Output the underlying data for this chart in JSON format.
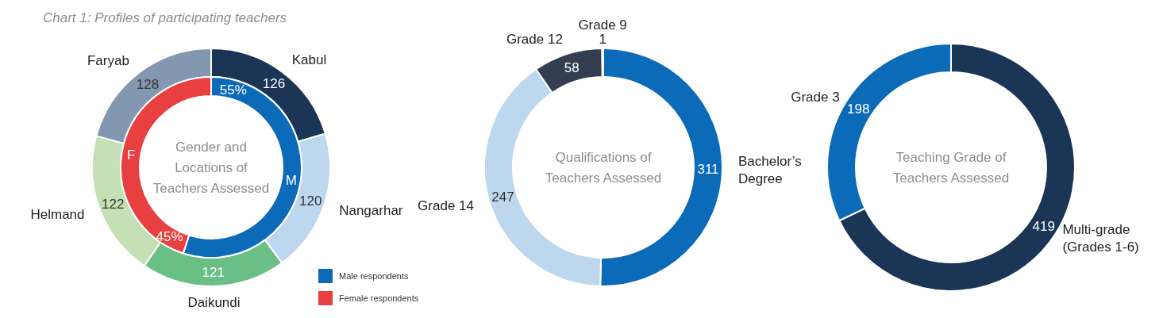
{
  "chart_data": [
    {
      "type": "donut",
      "title": "Chart 1: Profiles of participating teachers",
      "categories": [
        "Kabul",
        "Nangarhar",
        "Daikundi",
        "Helmand",
        "Faryab"
      ],
      "values": [
        126,
        120,
        121,
        122,
        128
      ],
      "colors": [
        "#1b3556",
        "#bdd7ee",
        "#6abf86",
        "#c5e0b4",
        "#8497b0"
      ],
      "data_labels": true,
      "legend": false
    },
    {
      "type": "donut",
      "categories": [
        "Male respondents",
        "Female respondents"
      ],
      "values": [
        55,
        45
      ],
      "value_labels": [
        "55%",
        "45%"
      ],
      "colors": [
        "#0b6bb8",
        "#e84040"
      ],
      "legend": "bottom right",
      "annotations": [
        "Gender and Locations of Teachers Assessed",
        "M",
        "F"
      ]
    },
    {
      "type": "donut",
      "categories": [
        "Bachelor’s Degree",
        "Grade 14",
        "Grade 12",
        "Grade 9"
      ],
      "values": [
        311,
        247,
        58,
        1
      ],
      "colors": [
        "#0b6bb8",
        "#bdd7ee",
        "#333f50",
        "#d9d9d9"
      ],
      "data_labels": true,
      "legend": false,
      "annotations": [
        "Qualifications of Teachers Assessed"
      ]
    },
    {
      "type": "donut",
      "categories": [
        "Multi-grade (Grades 1-6)",
        "Grade 3"
      ],
      "values": [
        419,
        198
      ],
      "colors": [
        "#1b3556",
        "#0b6bb8"
      ],
      "data_labels": true,
      "legend": false,
      "annotations": [
        "Teaching Grade of Teachers Assessed"
      ]
    }
  ]
}
